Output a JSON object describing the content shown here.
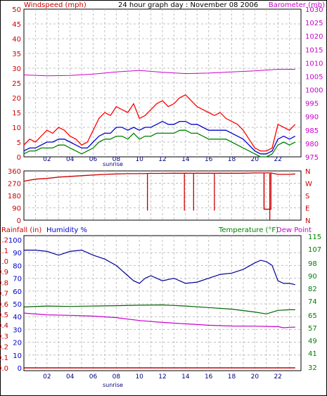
{
  "header": {
    "title": "24 hour graph day : November 08 2006",
    "left_label": "Windspeed (mph)",
    "right_label": "Barometer (mb)"
  },
  "colors": {
    "wind": "#ff0000",
    "gust": "#dd0000",
    "average": "#0000cc",
    "low": "#008000",
    "barometer": "#cc00cc",
    "direction": "#cc0000",
    "humidity": "#000099",
    "temperature": "#006600",
    "dewpoint": "#cc00cc",
    "rainfall": "#cc0000",
    "grid": "#c0c0c0",
    "axis_red": "#cc0000",
    "axis_blue": "#0000cc",
    "axis_green": "#008000",
    "axis_magenta": "#cc00cc"
  },
  "chart_data": [
    {
      "type": "line",
      "panel": "wind-barometer",
      "title": "24 hour graph day : November 08 2006",
      "ylabel": "Windspeed (mph)",
      "y2label": "Barometer (mb)",
      "x_ticks": [
        "02",
        "04",
        "06",
        "08",
        "10",
        "12",
        "14",
        "16",
        "18",
        "20",
        "22"
      ],
      "x_annotation": "sunrise",
      "ylim": [
        0,
        50
      ],
      "y_ticks": [
        "0",
        "5",
        "10",
        "15",
        "20",
        "25",
        "30",
        "35",
        "40",
        "45",
        "50"
      ],
      "y2lim": [
        975,
        1030
      ],
      "y2_ticks": [
        "975",
        "980",
        "985",
        "990",
        "995",
        "1000",
        "1005",
        "1010",
        "1015",
        "1020",
        "1025",
        "1030"
      ],
      "grid": true,
      "series": [
        {
          "key": "gust",
          "x": [
            0,
            0.5,
            1,
            1.5,
            2,
            2.5,
            3,
            3.5,
            4,
            4.5,
            5,
            5.5,
            6,
            6.5,
            7,
            7.5,
            8,
            8.5,
            9,
            9.5,
            10,
            10.5,
            11,
            11.5,
            12,
            12.5,
            13,
            13.5,
            14,
            14.5,
            15,
            15.5,
            16,
            16.5,
            17,
            17.5,
            18,
            18.5,
            19,
            19.5,
            20,
            20.5,
            21,
            21.5,
            22,
            22.5,
            23,
            23.5
          ],
          "values": [
            4,
            6,
            5,
            7,
            9,
            8,
            10,
            9,
            7,
            6,
            4,
            5,
            9,
            13,
            15,
            14,
            17,
            16,
            15,
            18,
            13,
            14,
            16,
            18,
            19,
            17,
            18,
            20,
            21,
            19,
            17,
            16,
            15,
            14,
            15,
            13,
            12,
            11,
            9,
            6,
            3,
            2,
            2,
            3,
            11,
            10,
            9,
            11
          ]
        },
        {
          "key": "average",
          "x": [
            0,
            0.5,
            1,
            1.5,
            2,
            2.5,
            3,
            3.5,
            4,
            4.5,
            5,
            5.5,
            6,
            6.5,
            7,
            7.5,
            8,
            8.5,
            9,
            9.5,
            10,
            10.5,
            11,
            11.5,
            12,
            12.5,
            13,
            13.5,
            14,
            14.5,
            15,
            15.5,
            16,
            16.5,
            17,
            17.5,
            18,
            18.5,
            19,
            19.5,
            20,
            20.5,
            21,
            21.5,
            22,
            22.5,
            23,
            23.5
          ],
          "values": [
            2,
            3,
            3,
            4,
            5,
            5,
            6,
            6,
            5,
            4,
            3,
            3,
            5,
            7,
            8,
            8,
            10,
            10,
            9,
            10,
            9,
            10,
            10,
            11,
            12,
            11,
            11,
            12,
            12,
            11,
            11,
            10,
            9,
            9,
            9,
            9,
            8,
            7,
            6,
            4,
            2,
            1,
            1,
            2,
            6,
            7,
            6,
            7
          ]
        },
        {
          "key": "low",
          "x": [
            0,
            0.5,
            1,
            1.5,
            2,
            2.5,
            3,
            3.5,
            4,
            4.5,
            5,
            5.5,
            6,
            6.5,
            7,
            7.5,
            8,
            8.5,
            9,
            9.5,
            10,
            10.5,
            11,
            11.5,
            12,
            12.5,
            13,
            13.5,
            14,
            14.5,
            15,
            15.5,
            16,
            16.5,
            17,
            17.5,
            18,
            18.5,
            19,
            19.5,
            20,
            20.5,
            21,
            21.5,
            22,
            22.5,
            23,
            23.5
          ],
          "values": [
            1,
            2,
            2,
            3,
            3,
            3,
            4,
            4,
            3,
            2,
            1,
            2,
            3,
            5,
            6,
            6,
            7,
            7,
            6,
            8,
            6,
            7,
            7,
            8,
            8,
            8,
            8,
            9,
            9,
            8,
            8,
            7,
            6,
            6,
            6,
            6,
            5,
            4,
            3,
            2,
            1,
            0,
            0,
            1,
            4,
            5,
            4,
            5
          ]
        },
        {
          "key": "barometer",
          "axis": "y2",
          "x": [
            0,
            2,
            4,
            6,
            8,
            10,
            12,
            14,
            16,
            18,
            20,
            22,
            23.5
          ],
          "values": [
            1005.5,
            1005.2,
            1005.3,
            1005.8,
            1006.6,
            1007.2,
            1006.5,
            1006.0,
            1006.2,
            1006.6,
            1007.0,
            1007.6,
            1007.6
          ]
        }
      ]
    },
    {
      "type": "line",
      "panel": "wind-direction",
      "ylim": [
        0,
        360
      ],
      "y_ticks": [
        "0",
        "90",
        "180",
        "270",
        "360"
      ],
      "y2_ticks": [
        "N",
        "W",
        "S",
        "E",
        "N"
      ],
      "grid": true,
      "series": [
        {
          "key": "direction",
          "x": [
            0,
            1,
            2,
            3,
            4,
            5,
            6,
            7,
            8,
            9,
            10,
            11,
            12,
            13,
            14,
            15,
            16,
            17,
            18,
            19,
            20,
            20.8,
            21.4,
            22,
            23,
            23.5
          ],
          "values": [
            285,
            300,
            305,
            315,
            320,
            325,
            330,
            335,
            338,
            340,
            340,
            342,
            342,
            343,
            343,
            343,
            343,
            343,
            343,
            343,
            345,
            345,
            345,
            335,
            335,
            338
          ]
        }
      ],
      "dips": [
        {
          "x": 10.7,
          "value": 70
        },
        {
          "x": 13.9,
          "value": 70
        },
        {
          "x": 14.7,
          "value": 70
        },
        {
          "x": 16.5,
          "value": 70
        },
        {
          "x": 20.8,
          "value": 80
        },
        {
          "x": 21.3,
          "value": 0
        }
      ]
    },
    {
      "type": "line",
      "panel": "humidity-temperature",
      "labels": {
        "rainfall": "Rainfall (in)",
        "humidity": "Humidity %",
        "temperature": "Temperature (°F)",
        "dewpoint": "Dew Point"
      },
      "x_ticks": [
        "02",
        "04",
        "06",
        "08",
        "10",
        "12",
        "14",
        "16",
        "18",
        "20",
        "22"
      ],
      "x_annotation": "sunrise",
      "humidity_ticks": [
        "0",
        "10",
        "20",
        "30",
        "40",
        "50",
        "60",
        "70",
        "80",
        "90",
        "100"
      ],
      "rain_ticks": [
        "0.0",
        "0.1",
        "0.2",
        "0.3",
        "0.4",
        "0.5",
        "0.6",
        "0.7",
        "0.8",
        "0.9",
        "1.0",
        "1.1",
        "1.2"
      ],
      "temp_ticks": [
        "32",
        "41",
        "49",
        "57",
        "65",
        "74",
        "82",
        "90",
        "98",
        "107",
        "115"
      ],
      "humidity_lim": [
        0,
        100
      ],
      "temp_lim": [
        32,
        115
      ],
      "grid": true,
      "series": [
        {
          "key": "humidity",
          "x": [
            0,
            1,
            2,
            3,
            4,
            5,
            6,
            7,
            8,
            9,
            9.5,
            10,
            10.5,
            11,
            12,
            13,
            14,
            15,
            16,
            17,
            18,
            19,
            20,
            20.5,
            21,
            21.5,
            22,
            22.5,
            23,
            23.5
          ],
          "values": [
            92,
            92,
            91,
            88,
            91,
            92,
            88,
            85,
            80,
            72,
            68,
            66,
            70,
            72,
            68,
            70,
            66,
            67,
            70,
            73,
            74,
            77,
            82,
            84,
            83,
            80,
            68,
            66,
            66,
            65
          ]
        },
        {
          "key": "temperature",
          "x": [
            0,
            2,
            4,
            6,
            8,
            10,
            12,
            14,
            16,
            18,
            20,
            21,
            22,
            23,
            23.5
          ],
          "values": [
            70.2,
            70.8,
            70.5,
            70.8,
            71.0,
            71.3,
            71.5,
            70.8,
            69.8,
            68.8,
            67.0,
            65.8,
            68.0,
            68.4,
            68.4
          ]
        },
        {
          "key": "dewpoint",
          "x": [
            0,
            2,
            4,
            6,
            8,
            10,
            12,
            14,
            16,
            18,
            20,
            22,
            22.5,
            23,
            23.5
          ],
          "values": [
            66.3,
            65.2,
            64.9,
            64.4,
            63.4,
            61.6,
            60.4,
            59.5,
            58.6,
            58.1,
            58.0,
            57.7,
            57.0,
            57.3,
            57.4
          ]
        },
        {
          "key": "rainfall",
          "x": [
            0,
            23.5
          ],
          "values": [
            0,
            0
          ]
        }
      ]
    }
  ]
}
